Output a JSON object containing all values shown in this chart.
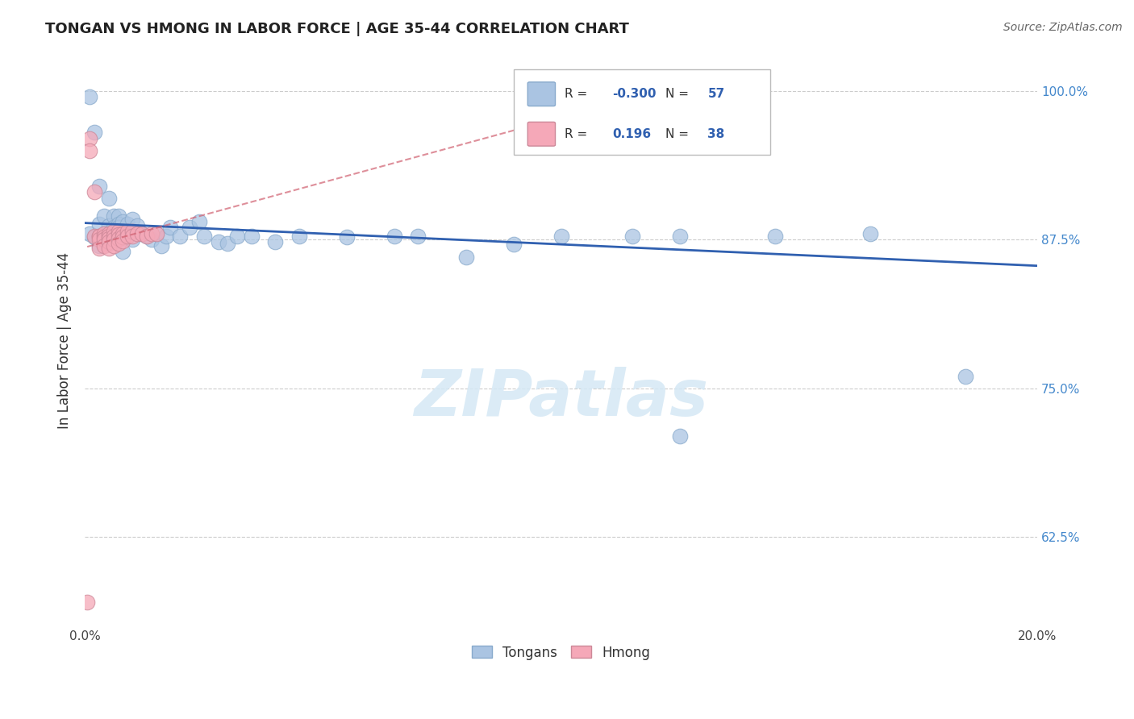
{
  "title": "TONGAN VS HMONG IN LABOR FORCE | AGE 35-44 CORRELATION CHART",
  "source": "Source: ZipAtlas.com",
  "ylabel": "In Labor Force | Age 35-44",
  "xmin": 0.0,
  "xmax": 0.2,
  "ymin": 0.55,
  "ymax": 1.03,
  "ytick_positions": [
    0.625,
    0.75,
    0.875,
    1.0
  ],
  "ytick_labels": [
    "62.5%",
    "75.0%",
    "87.5%",
    "100.0%"
  ],
  "legend_r_blue": "-0.300",
  "legend_n_blue": "57",
  "legend_r_pink": "0.196",
  "legend_n_pink": "38",
  "blue_color": "#aac4e2",
  "pink_color": "#f5a8b8",
  "trend_blue_color": "#3060b0",
  "trend_pink_color": "#d06070",
  "watermark_color": "#d5e8f5",
  "legend_entries": [
    "Tongans",
    "Hmong"
  ],
  "blue_trend_x": [
    0.0,
    0.2
  ],
  "blue_trend_y": [
    0.889,
    0.853
  ],
  "pink_trend_x": [
    0.0,
    0.013
  ],
  "pink_trend_y": [
    0.869,
    0.888
  ],
  "blue_x": [
    0.001,
    0.001,
    0.002,
    0.002,
    0.003,
    0.003,
    0.003,
    0.004,
    0.004,
    0.005,
    0.005,
    0.005,
    0.006,
    0.006,
    0.006,
    0.006,
    0.007,
    0.007,
    0.007,
    0.007,
    0.008,
    0.008,
    0.008,
    0.009,
    0.009,
    0.01,
    0.01,
    0.011,
    0.012,
    0.013,
    0.014,
    0.015,
    0.016,
    0.017,
    0.018,
    0.02,
    0.022,
    0.024,
    0.025,
    0.028,
    0.03,
    0.032,
    0.035,
    0.04,
    0.045,
    0.055,
    0.065,
    0.07,
    0.08,
    0.09,
    0.1,
    0.115,
    0.125,
    0.145,
    0.165,
    0.185,
    0.125
  ],
  "blue_y": [
    0.995,
    0.88,
    0.965,
    0.877,
    0.92,
    0.888,
    0.87,
    0.895,
    0.875,
    0.91,
    0.887,
    0.872,
    0.895,
    0.885,
    0.88,
    0.876,
    0.895,
    0.888,
    0.885,
    0.875,
    0.89,
    0.882,
    0.865,
    0.888,
    0.878,
    0.892,
    0.875,
    0.887,
    0.88,
    0.878,
    0.875,
    0.88,
    0.87,
    0.878,
    0.885,
    0.878,
    0.885,
    0.89,
    0.878,
    0.873,
    0.872,
    0.878,
    0.878,
    0.873,
    0.878,
    0.877,
    0.878,
    0.878,
    0.86,
    0.871,
    0.878,
    0.878,
    0.878,
    0.878,
    0.88,
    0.76,
    0.71
  ],
  "pink_x": [
    0.0005,
    0.001,
    0.001,
    0.002,
    0.002,
    0.003,
    0.003,
    0.003,
    0.003,
    0.004,
    0.004,
    0.004,
    0.004,
    0.005,
    0.005,
    0.005,
    0.005,
    0.005,
    0.006,
    0.006,
    0.006,
    0.006,
    0.007,
    0.007,
    0.007,
    0.007,
    0.008,
    0.008,
    0.008,
    0.009,
    0.009,
    0.01,
    0.01,
    0.011,
    0.012,
    0.013,
    0.014,
    0.015
  ],
  "pink_y": [
    0.57,
    0.96,
    0.95,
    0.915,
    0.878,
    0.878,
    0.878,
    0.875,
    0.868,
    0.88,
    0.877,
    0.875,
    0.87,
    0.88,
    0.878,
    0.876,
    0.873,
    0.868,
    0.882,
    0.878,
    0.875,
    0.87,
    0.882,
    0.879,
    0.876,
    0.872,
    0.88,
    0.877,
    0.874,
    0.882,
    0.878,
    0.882,
    0.878,
    0.88,
    0.88,
    0.878,
    0.88,
    0.88
  ]
}
